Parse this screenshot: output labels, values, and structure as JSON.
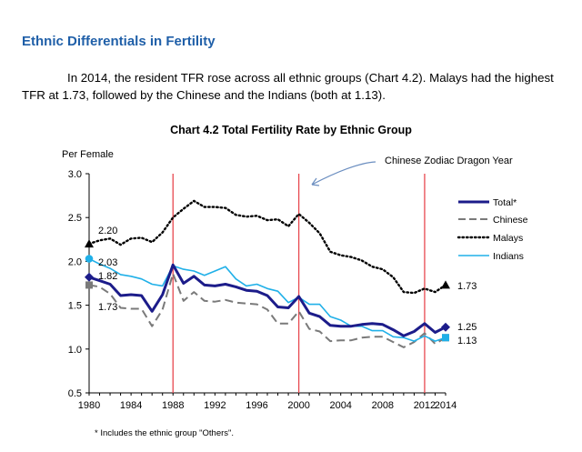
{
  "heading": "Ethnic Differentials in Fertility",
  "paragraph": "In 2014, the resident TFR rose across all ethnic groups (Chart 4.2). Malays had the highest TFR at 1.73, followed by the Chinese and the Indians (both at 1.13).",
  "footnote": "*  Includes the ethnic group \"Others\".",
  "colors": {
    "heading": "#1f5fa8",
    "total": "#1c1c8a",
    "chinese": "#7a7a7a",
    "malays": "#000000",
    "indians": "#20b0e8",
    "marker_lines": "#e8484f",
    "annotation": "#6b8ec0"
  },
  "chart_data": {
    "type": "line",
    "title": "Chart 4.2  Total Fertility Rate by Ethnic Group",
    "ylabel": "Per Female",
    "xlabel": "",
    "xlim": [
      1980,
      2014
    ],
    "ylim": [
      0.5,
      3.0
    ],
    "x_ticks": [
      1980,
      1984,
      1988,
      1992,
      1996,
      2000,
      2004,
      2008,
      2012,
      2014
    ],
    "y_ticks": [
      0.5,
      1.0,
      1.5,
      2.0,
      2.5,
      3.0
    ],
    "y_tick_labels": [
      "0.5",
      "1.0",
      "1.5",
      "2.0",
      "2.5",
      "3.0"
    ],
    "dragon_years": [
      1988,
      2000,
      2012
    ],
    "annotation": "Chinese Zodiac Dragon Year",
    "x": [
      1980,
      1981,
      1982,
      1983,
      1984,
      1985,
      1986,
      1987,
      1988,
      1989,
      1990,
      1991,
      1992,
      1993,
      1994,
      1995,
      1996,
      1997,
      1998,
      1999,
      2000,
      2001,
      2002,
      2003,
      2004,
      2005,
      2006,
      2007,
      2008,
      2009,
      2010,
      2011,
      2012,
      2013,
      2014
    ],
    "series": [
      {
        "name": "Total*",
        "style": "solid-thick",
        "values": [
          1.82,
          1.78,
          1.74,
          1.61,
          1.62,
          1.61,
          1.43,
          1.62,
          1.96,
          1.75,
          1.83,
          1.73,
          1.72,
          1.74,
          1.71,
          1.67,
          1.66,
          1.61,
          1.48,
          1.47,
          1.6,
          1.41,
          1.37,
          1.27,
          1.26,
          1.26,
          1.28,
          1.29,
          1.28,
          1.22,
          1.15,
          1.2,
          1.29,
          1.19,
          1.25
        ],
        "start_label": "1.82",
        "end_label": "1.25"
      },
      {
        "name": "Chinese",
        "style": "dashed",
        "values": [
          1.73,
          1.71,
          1.63,
          1.47,
          1.46,
          1.46,
          1.26,
          1.45,
          1.86,
          1.55,
          1.65,
          1.55,
          1.54,
          1.56,
          1.53,
          1.52,
          1.51,
          1.45,
          1.29,
          1.29,
          1.43,
          1.23,
          1.2,
          1.09,
          1.1,
          1.1,
          1.13,
          1.14,
          1.14,
          1.08,
          1.02,
          1.08,
          1.18,
          1.06,
          1.13
        ],
        "start_label": "1.73",
        "end_label": "1.13"
      },
      {
        "name": "Malays",
        "style": "dotted",
        "values": [
          2.2,
          2.24,
          2.26,
          2.19,
          2.26,
          2.27,
          2.22,
          2.33,
          2.5,
          2.6,
          2.69,
          2.62,
          2.62,
          2.61,
          2.53,
          2.51,
          2.52,
          2.47,
          2.48,
          2.4,
          2.54,
          2.44,
          2.32,
          2.11,
          2.07,
          2.05,
          2.01,
          1.94,
          1.91,
          1.82,
          1.65,
          1.64,
          1.69,
          1.65,
          1.73
        ],
        "start_label": "2.20",
        "end_label": "1.73"
      },
      {
        "name": "Indians",
        "style": "solid-thin",
        "values": [
          2.03,
          1.97,
          1.92,
          1.85,
          1.83,
          1.8,
          1.74,
          1.72,
          1.95,
          1.91,
          1.89,
          1.84,
          1.89,
          1.94,
          1.8,
          1.72,
          1.74,
          1.69,
          1.66,
          1.53,
          1.59,
          1.51,
          1.51,
          1.37,
          1.33,
          1.26,
          1.26,
          1.21,
          1.21,
          1.14,
          1.13,
          1.09,
          1.15,
          1.09,
          1.13
        ],
        "start_label": "2.03",
        "end_label": "1.13"
      }
    ],
    "legend": [
      "Total*",
      "Chinese",
      "Malays",
      "Indians"
    ],
    "legend_position": "top-right",
    "grid": false
  }
}
